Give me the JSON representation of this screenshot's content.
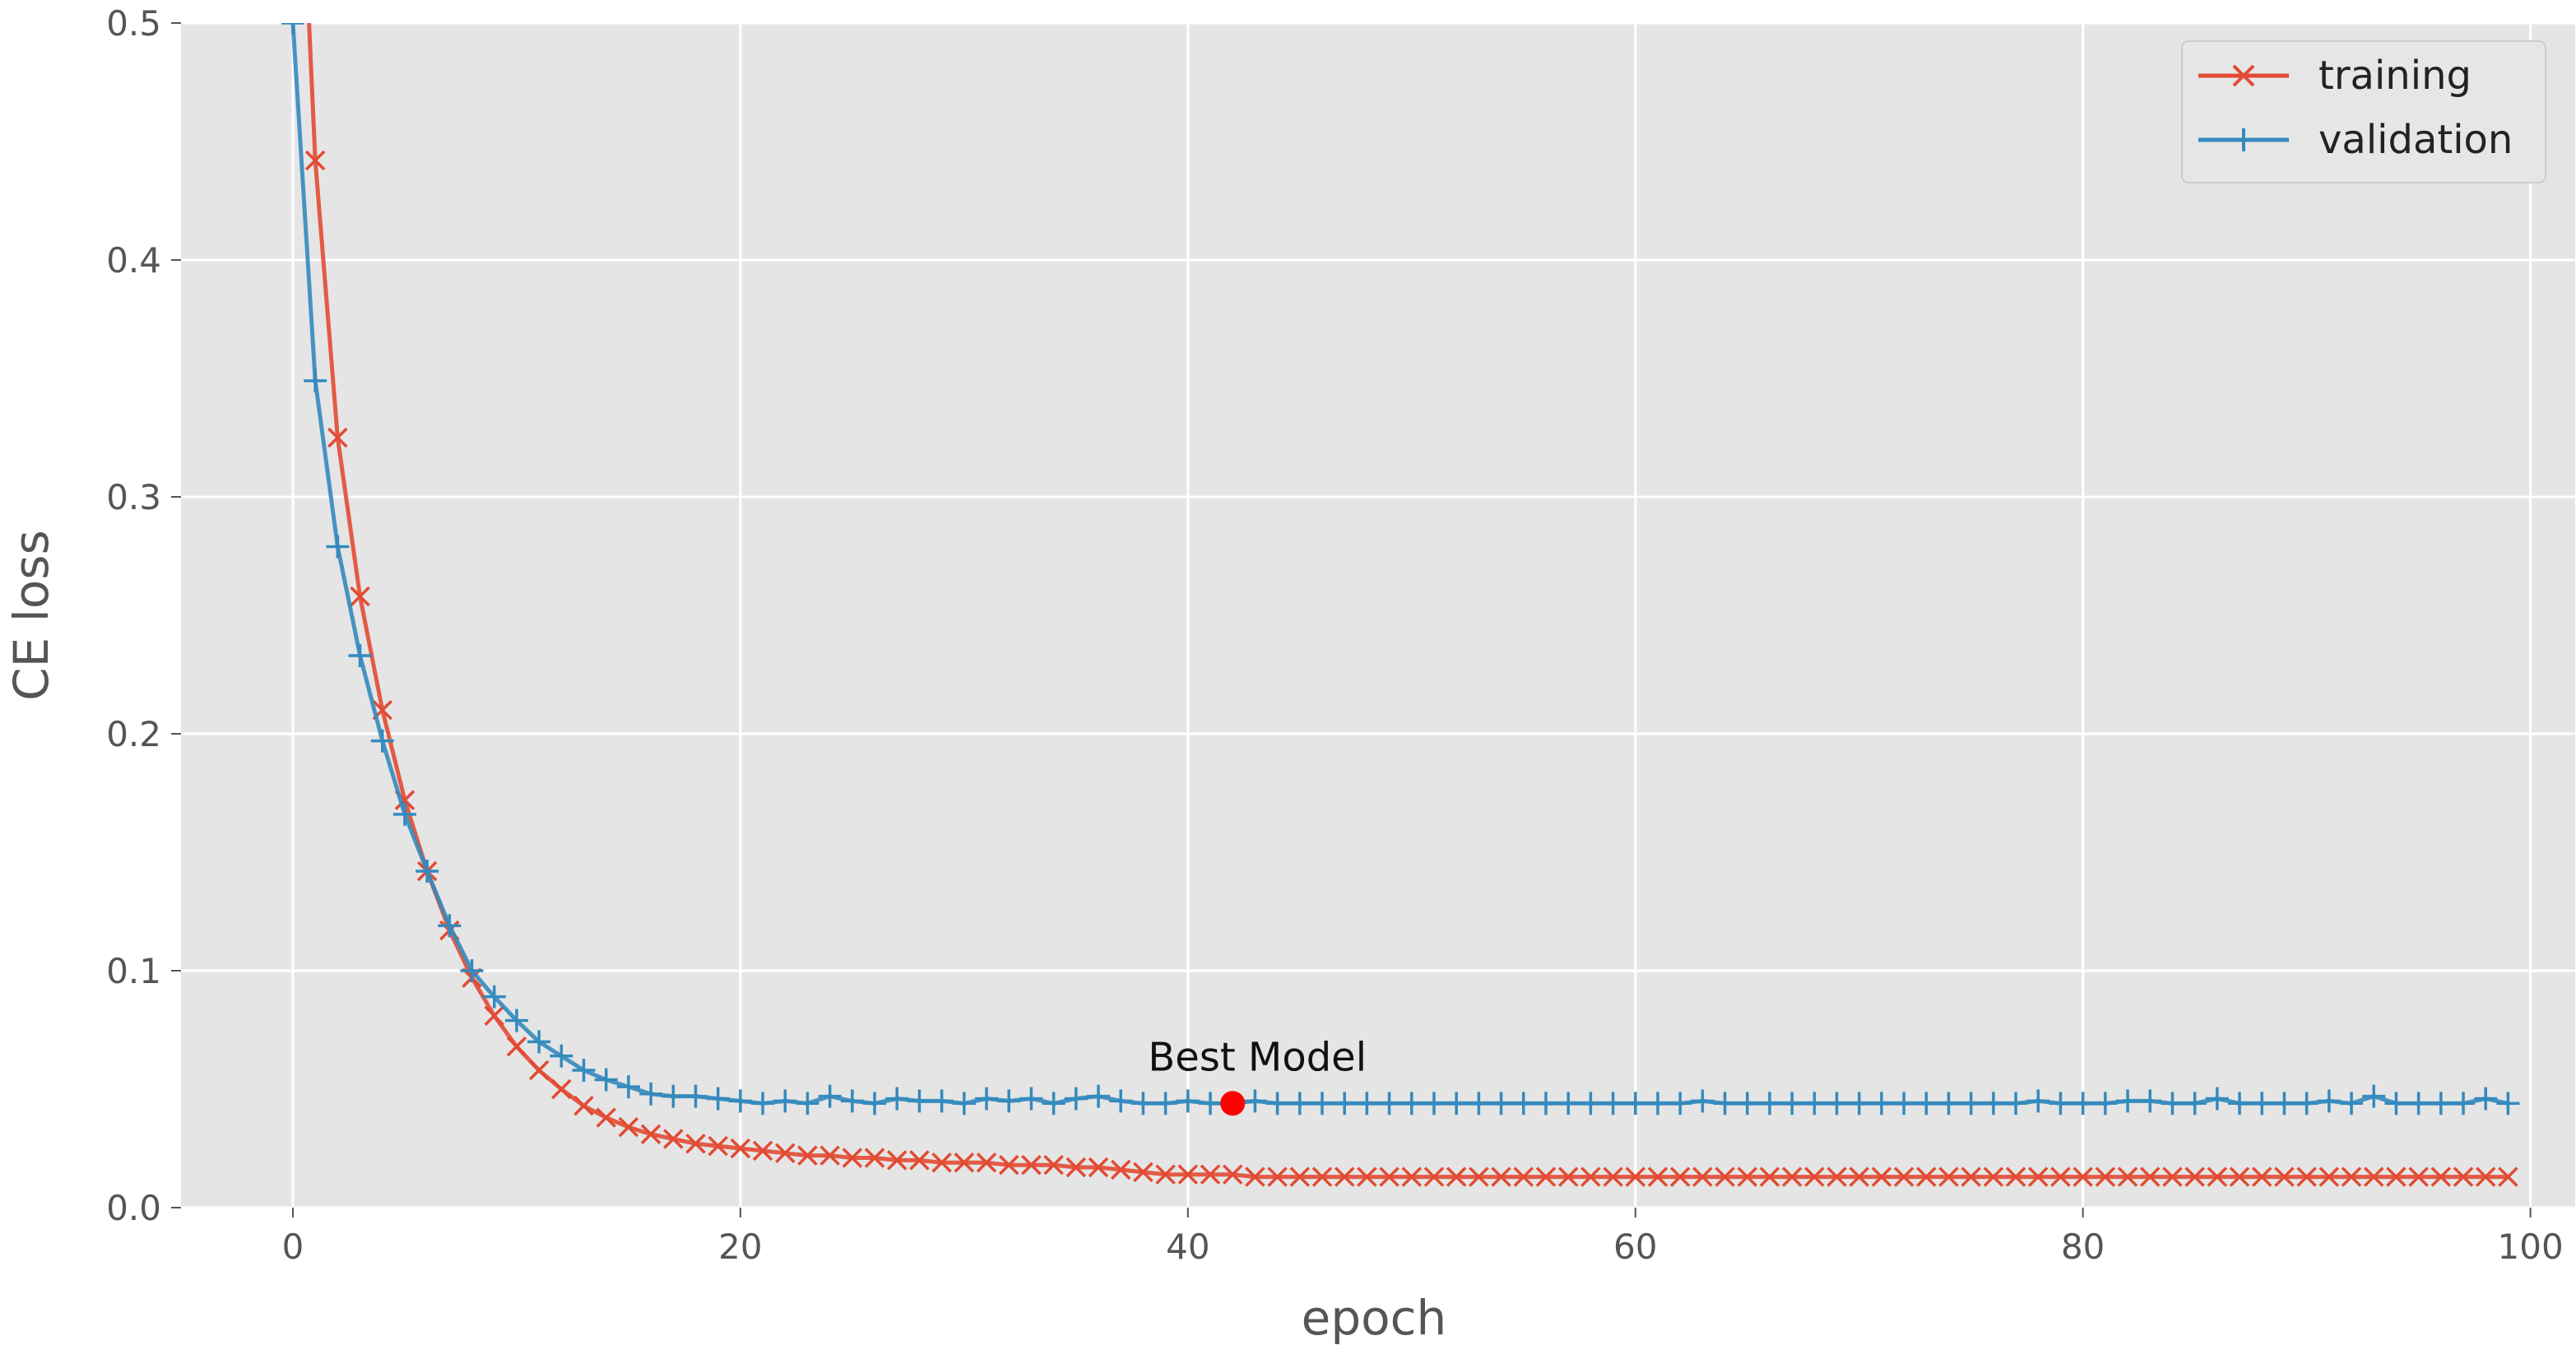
{
  "chart_data": {
    "type": "line",
    "xlabel": "epoch",
    "ylabel": "CE loss",
    "xlim": [
      -5,
      102
    ],
    "ylim": [
      0,
      0.5
    ],
    "xticks": [
      0,
      20,
      40,
      60,
      80,
      100
    ],
    "yticks": [
      0.0,
      0.1,
      0.2,
      0.3,
      0.4,
      0.5
    ],
    "xtick_labels": [
      "0",
      "20",
      "40",
      "60",
      "80",
      "100"
    ],
    "ytick_labels": [
      "0.0",
      "0.1",
      "0.2",
      "0.3",
      "0.4",
      "0.5"
    ],
    "grid": true,
    "legend_position": "top-right",
    "series": [
      {
        "name": "training",
        "color": "#e24a33",
        "marker": "x",
        "x": [
          0,
          1,
          2,
          3,
          4,
          5,
          6,
          7,
          8,
          9,
          10,
          11,
          12,
          13,
          14,
          15,
          16,
          17,
          18,
          19,
          20,
          21,
          22,
          23,
          24,
          25,
          26,
          27,
          28,
          29,
          30,
          31,
          32,
          33,
          34,
          35,
          36,
          37,
          38,
          39,
          40,
          41,
          42,
          43,
          44,
          45,
          46,
          47,
          48,
          49,
          50,
          51,
          52,
          53,
          54,
          55,
          56,
          57,
          58,
          59,
          60,
          61,
          62,
          63,
          64,
          65,
          66,
          67,
          68,
          69,
          70,
          71,
          72,
          73,
          74,
          75,
          76,
          77,
          78,
          79,
          80,
          81,
          82,
          83,
          84,
          85,
          86,
          87,
          88,
          89,
          90,
          91,
          92,
          93,
          94,
          95,
          96,
          97,
          98,
          99
        ],
        "y": [
          0.65,
          0.442,
          0.325,
          0.258,
          0.21,
          0.172,
          0.142,
          0.117,
          0.097,
          0.081,
          0.068,
          0.058,
          0.05,
          0.043,
          0.038,
          0.034,
          0.031,
          0.029,
          0.027,
          0.026,
          0.025,
          0.024,
          0.023,
          0.022,
          0.022,
          0.021,
          0.021,
          0.02,
          0.02,
          0.019,
          0.019,
          0.019,
          0.018,
          0.018,
          0.018,
          0.017,
          0.017,
          0.016,
          0.015,
          0.014,
          0.014,
          0.014,
          0.014,
          0.013,
          0.013,
          0.013,
          0.013,
          0.013,
          0.013,
          0.013,
          0.013,
          0.013,
          0.013,
          0.013,
          0.013,
          0.013,
          0.013,
          0.013,
          0.013,
          0.013,
          0.013,
          0.013,
          0.013,
          0.013,
          0.013,
          0.013,
          0.013,
          0.013,
          0.013,
          0.013,
          0.013,
          0.013,
          0.013,
          0.013,
          0.013,
          0.013,
          0.013,
          0.013,
          0.013,
          0.013,
          0.013,
          0.013,
          0.013,
          0.013,
          0.013,
          0.013,
          0.013,
          0.013,
          0.013,
          0.013,
          0.013,
          0.013,
          0.013,
          0.013,
          0.013,
          0.013,
          0.013,
          0.013,
          0.013,
          0.013
        ]
      },
      {
        "name": "validation",
        "color": "#348abd",
        "marker": "+",
        "x": [
          0,
          1,
          2,
          3,
          4,
          5,
          6,
          7,
          8,
          9,
          10,
          11,
          12,
          13,
          14,
          15,
          16,
          17,
          18,
          19,
          20,
          21,
          22,
          23,
          24,
          25,
          26,
          27,
          28,
          29,
          30,
          31,
          32,
          33,
          34,
          35,
          36,
          37,
          38,
          39,
          40,
          41,
          42,
          43,
          44,
          45,
          46,
          47,
          48,
          49,
          50,
          51,
          52,
          53,
          54,
          55,
          56,
          57,
          58,
          59,
          60,
          61,
          62,
          63,
          64,
          65,
          66,
          67,
          68,
          69,
          70,
          71,
          72,
          73,
          74,
          75,
          76,
          77,
          78,
          79,
          80,
          81,
          82,
          83,
          84,
          85,
          86,
          87,
          88,
          89,
          90,
          91,
          92,
          93,
          94,
          95,
          96,
          97,
          98,
          99
        ],
        "y": [
          0.5,
          0.349,
          0.279,
          0.233,
          0.197,
          0.166,
          0.142,
          0.119,
          0.1,
          0.089,
          0.079,
          0.07,
          0.064,
          0.058,
          0.054,
          0.051,
          0.048,
          0.047,
          0.047,
          0.046,
          0.045,
          0.044,
          0.045,
          0.044,
          0.047,
          0.045,
          0.044,
          0.046,
          0.045,
          0.045,
          0.044,
          0.046,
          0.045,
          0.046,
          0.044,
          0.046,
          0.047,
          0.045,
          0.044,
          0.044,
          0.045,
          0.044,
          0.044,
          0.045,
          0.044,
          0.044,
          0.044,
          0.044,
          0.044,
          0.044,
          0.044,
          0.044,
          0.044,
          0.044,
          0.044,
          0.044,
          0.044,
          0.044,
          0.044,
          0.044,
          0.044,
          0.044,
          0.044,
          0.045,
          0.044,
          0.044,
          0.044,
          0.044,
          0.044,
          0.044,
          0.044,
          0.044,
          0.044,
          0.044,
          0.044,
          0.044,
          0.044,
          0.044,
          0.045,
          0.044,
          0.044,
          0.044,
          0.045,
          0.045,
          0.044,
          0.044,
          0.046,
          0.044,
          0.044,
          0.044,
          0.044,
          0.045,
          0.044,
          0.047,
          0.044,
          0.044,
          0.044,
          0.044,
          0.046,
          0.044
        ]
      }
    ],
    "annotations": [
      {
        "text": "Best Model",
        "x": 42,
        "y": 0.044,
        "marker_color": "#ff0000"
      }
    ]
  },
  "legend": {
    "training_label": "training",
    "validation_label": "validation"
  },
  "annotation": {
    "best_model_label": "Best Model"
  },
  "axes": {
    "xlabel": "epoch",
    "ylabel": "CE loss"
  }
}
